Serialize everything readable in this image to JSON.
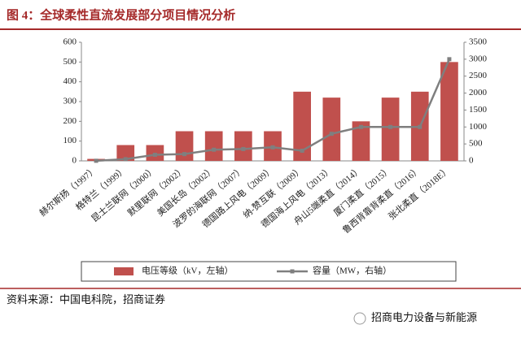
{
  "chart_data": {
    "type": "bar_line",
    "title": "图 4：全球柔性直流发展部分项目情况分析",
    "categories": [
      "赫尔斯扬（1997）",
      "格特兰（1999）",
      "昆士兰联网（2000）",
      "默里联网（2002）",
      "美国长岛（2002）",
      "波罗的海联网（2007）",
      "德国路上风电（2009）",
      "纳-赞互联（2009）",
      "德国海上风电（2013）",
      "舟山5端柔直（2014）",
      "厦门柔直（2015）",
      "鲁西背靠背柔直（2016）",
      "张北柔直（2018E）"
    ],
    "series": [
      {
        "name": "电压等级（kV，左轴）",
        "color": "#c0504d",
        "values": [
          10,
          80,
          80,
          150,
          150,
          150,
          150,
          350,
          320,
          200,
          320,
          350,
          500
        ]
      },
      {
        "name": "容量（MW，右轴）",
        "color": "#7f7f7f",
        "axis": "y2",
        "values": [
          3,
          50,
          180,
          200,
          330,
          350,
          400,
          300,
          800,
          1000,
          1000,
          1000,
          3000
        ]
      }
    ],
    "ylim": [
      0,
      600
    ],
    "yticks": [
      0,
      100,
      200,
      300,
      400,
      500,
      600
    ],
    "y2lim": [
      0,
      3500
    ],
    "y2ticks": [
      0,
      500,
      1000,
      1500,
      2000,
      2500,
      3000,
      3500
    ],
    "source": "资料来源：中国电科院，招商证券",
    "watermark": "招商电力设备与新能源"
  }
}
